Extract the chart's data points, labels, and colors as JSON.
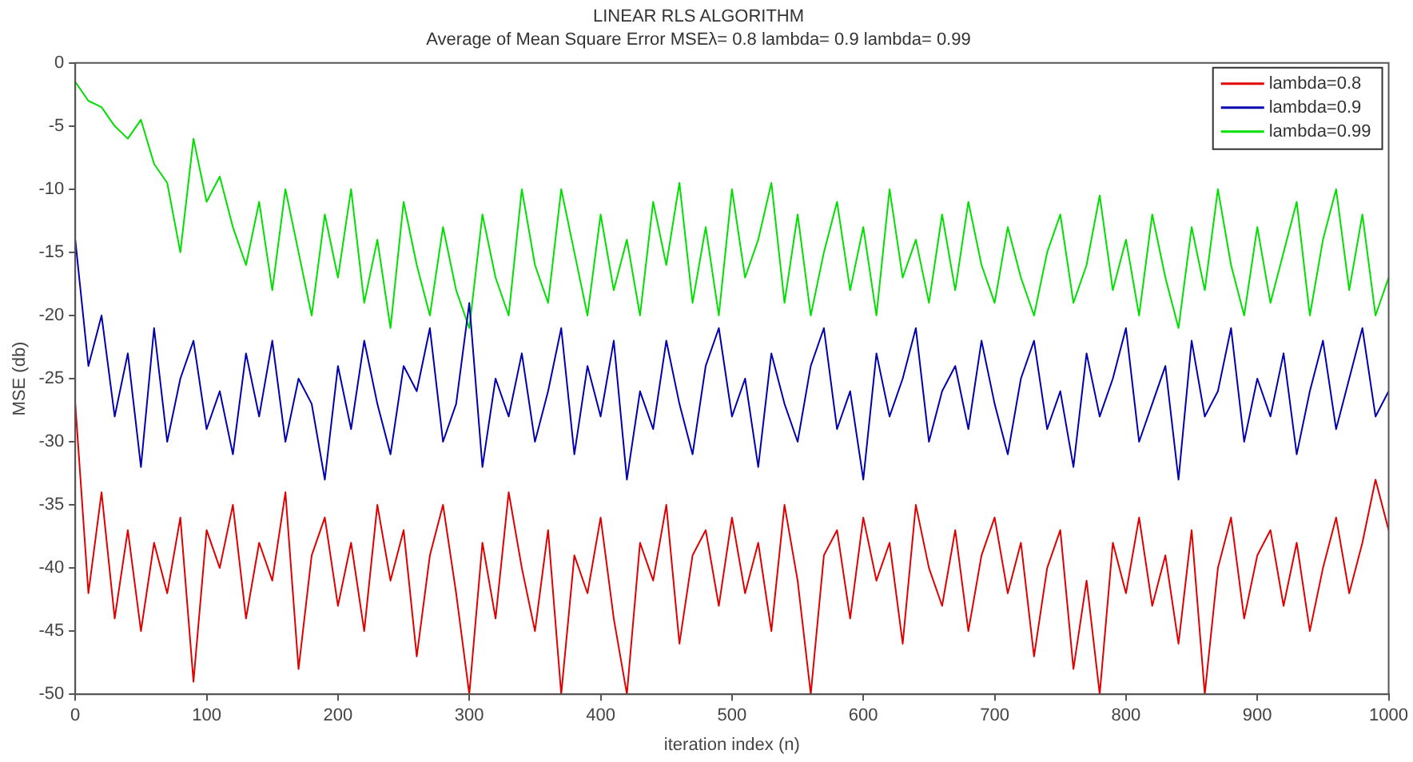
{
  "chart_data": {
    "type": "line",
    "title": "LINEAR RLS ALGORITHM",
    "subtitle": "Average of Mean Square Error MSEλ= 0.8 lambda= 0.9 lambda= 0.99",
    "xlabel": "iteration index (n)",
    "ylabel": "MSE (db)",
    "x": [
      0,
      10,
      20,
      30,
      40,
      50,
      60,
      70,
      80,
      90,
      100,
      110,
      120,
      130,
      140,
      150,
      160,
      170,
      180,
      190,
      200,
      210,
      220,
      230,
      240,
      250,
      260,
      270,
      280,
      290,
      300,
      310,
      320,
      330,
      340,
      350,
      360,
      370,
      380,
      390,
      400,
      410,
      420,
      430,
      440,
      450,
      460,
      470,
      480,
      490,
      500,
      510,
      520,
      530,
      540,
      550,
      560,
      570,
      580,
      590,
      600,
      610,
      620,
      630,
      640,
      650,
      660,
      670,
      680,
      690,
      700,
      710,
      720,
      730,
      740,
      750,
      760,
      770,
      780,
      790,
      800,
      810,
      820,
      830,
      840,
      850,
      860,
      870,
      880,
      890,
      900,
      910,
      920,
      930,
      940,
      950,
      960,
      970,
      980,
      990,
      1000
    ],
    "series": [
      {
        "name": "lambda=0.8",
        "color": "#e00000",
        "values": [
          -27,
          -42,
          -34,
          -44,
          -37,
          -45,
          -38,
          -42,
          -36,
          -49,
          -37,
          -40,
          -35,
          -44,
          -38,
          -41,
          -34,
          -48,
          -39,
          -36,
          -43,
          -38,
          -45,
          -35,
          -41,
          -37,
          -47,
          -39,
          -35,
          -42,
          -50,
          -38,
          -44,
          -34,
          -40,
          -45,
          -37,
          -50,
          -39,
          -42,
          -36,
          -44,
          -50,
          -38,
          -41,
          -35,
          -46,
          -39,
          -37,
          -43,
          -36,
          -42,
          -38,
          -45,
          -35,
          -41,
          -50,
          -39,
          -37,
          -44,
          -36,
          -41,
          -38,
          -46,
          -35,
          -40,
          -43,
          -37,
          -45,
          -39,
          -36,
          -42,
          -38,
          -47,
          -40,
          -37,
          -48,
          -41,
          -50,
          -38,
          -42,
          -36,
          -43,
          -39,
          -46,
          -37,
          -50,
          -40,
          -36,
          -44,
          -39,
          -37,
          -43,
          -38,
          -45,
          -40,
          -36,
          -42,
          -38,
          -33,
          -37
        ]
      },
      {
        "name": "lambda=0.9",
        "color": "#0000b0",
        "values": [
          -14,
          -24,
          -20,
          -28,
          -23,
          -32,
          -21,
          -30,
          -25,
          -22,
          -29,
          -26,
          -31,
          -23,
          -28,
          -22,
          -30,
          -25,
          -27,
          -33,
          -24,
          -29,
          -22,
          -27,
          -31,
          -24,
          -26,
          -21,
          -30,
          -27,
          -19,
          -32,
          -25,
          -28,
          -23,
          -30,
          -26,
          -21,
          -31,
          -24,
          -28,
          -22,
          -33,
          -26,
          -29,
          -22,
          -27,
          -31,
          -24,
          -21,
          -28,
          -25,
          -32,
          -23,
          -27,
          -30,
          -24,
          -21,
          -29,
          -26,
          -33,
          -23,
          -28,
          -25,
          -21,
          -30,
          -26,
          -24,
          -29,
          -22,
          -27,
          -31,
          -25,
          -22,
          -29,
          -26,
          -32,
          -23,
          -28,
          -25,
          -21,
          -30,
          -27,
          -24,
          -33,
          -22,
          -28,
          -26,
          -21,
          -30,
          -25,
          -28,
          -23,
          -31,
          -26,
          -22,
          -29,
          -25,
          -21,
          -28,
          -26
        ]
      },
      {
        "name": "lambda=0.99",
        "color": "#00e000",
        "values": [
          -1.5,
          -3,
          -3.5,
          -5,
          -6,
          -4.5,
          -8,
          -9.5,
          -15,
          -6,
          -11,
          -9,
          -13,
          -16,
          -11,
          -18,
          -10,
          -15,
          -20,
          -12,
          -17,
          -10,
          -19,
          -14,
          -21,
          -11,
          -16,
          -20,
          -13,
          -18,
          -21,
          -12,
          -17,
          -20,
          -10,
          -16,
          -19,
          -10,
          -15,
          -20,
          -12,
          -18,
          -14,
          -20,
          -11,
          -16,
          -9.5,
          -19,
          -13,
          -20,
          -10,
          -17,
          -14,
          -9.5,
          -19,
          -12,
          -20,
          -15,
          -11,
          -18,
          -13,
          -20,
          -10,
          -17,
          -14,
          -19,
          -12,
          -18,
          -11,
          -16,
          -19,
          -13,
          -17,
          -20,
          -15,
          -12,
          -19,
          -16,
          -10.5,
          -18,
          -14,
          -20,
          -12,
          -17,
          -21,
          -13,
          -18,
          -10,
          -16,
          -20,
          -13,
          -19,
          -15,
          -11,
          -20,
          -14,
          -10,
          -18,
          -12,
          -20,
          -17
        ]
      }
    ],
    "xlim": [
      0,
      1000
    ],
    "xticks": [
      0,
      100,
      200,
      300,
      400,
      500,
      600,
      700,
      800,
      900,
      1000
    ],
    "ylim": [
      -50,
      0
    ],
    "yticks": [
      -50,
      -45,
      -40,
      -35,
      -30,
      -25,
      -20,
      -15,
      -10,
      -5,
      0
    ],
    "grid": false,
    "legend": "top right",
    "marker": "none",
    "line_style": "solid"
  }
}
